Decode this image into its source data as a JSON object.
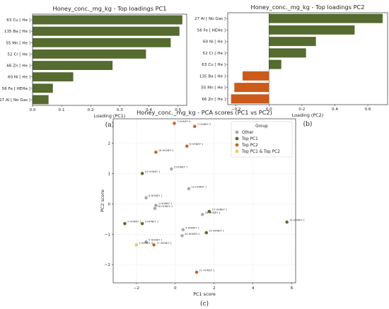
{
  "chart_data": [
    {
      "type": "bar",
      "orientation": "horizontal",
      "title": "Honey_conc._mg_kg - Top loadings PC1",
      "xlabel": "Loading (PC1)",
      "panel_label": "(a)",
      "categories": [
        "63 Cu [ He ]",
        "135 Ba [ He ]",
        "55 Mn [ He ]",
        "52 Cr [ He ]",
        "66 Zn [ He ]",
        "60 Ni [ He ]",
        "56 Fe [ HEHe ]",
        "27 Al [ No Gas ]"
      ],
      "values": [
        0.515,
        0.505,
        0.475,
        0.39,
        0.275,
        0.14,
        0.07,
        0.055
      ],
      "xlim": [
        0,
        0.53
      ],
      "xticks": [
        0.0,
        0.1,
        0.2,
        0.3,
        0.4,
        0.5
      ],
      "xtick_labels": [
        "0.0",
        "0.1",
        "0.2",
        "0.3",
        "0.4",
        "0.5"
      ],
      "colors": {
        "positive": "#556b2f",
        "negative": "#cc5a1a"
      }
    },
    {
      "type": "bar",
      "orientation": "horizontal",
      "title": "Honey_conc._mg_kg - Top loadings PC2",
      "xlabel": "Loading (PC2)",
      "panel_label": "(b)",
      "categories": [
        "27 Al [ No Gas ]",
        "56 Fe [ HEHe ]",
        "60 Ni [ He ]",
        "52 Cr [ He ]",
        "63 Cu [ He ]",
        "135 Ba [ He ]",
        "55 Mn [ He ]",
        "66 Zn [ He ]"
      ],
      "values": [
        0.69,
        0.52,
        0.285,
        0.225,
        0.075,
        -0.16,
        -0.21,
        -0.23
      ],
      "xlim": [
        -0.25,
        0.72
      ],
      "xticks": [
        -0.2,
        0.0,
        0.2,
        0.4,
        0.6
      ],
      "xtick_labels": [
        "−0.2",
        "0.0",
        "0.2",
        "0.4",
        "0.6"
      ],
      "colors": {
        "positive": "#556b2f",
        "negative": "#cc5a1a"
      }
    },
    {
      "type": "scatter",
      "title": "Honey_conc._mg_kg - PCA scores (PC1 vs PC2)",
      "xlabel": "PC1 score",
      "ylabel": "PC2 score",
      "panel_label": "(c)",
      "xlim": [
        -3.2,
        6.2
      ],
      "ylim": [
        -2.6,
        2.8
      ],
      "xticks": [
        -2,
        0,
        2,
        4,
        6
      ],
      "xtick_labels": [
        "−2",
        "0",
        "2",
        "4",
        "6"
      ],
      "yticks": [
        -2,
        -1,
        0,
        1,
        2
      ],
      "ytick_labels": [
        "−2",
        "−1",
        "0",
        "1",
        "2"
      ],
      "legend": {
        "title": "Group",
        "position": "top-right",
        "entries": [
          {
            "label": "Other",
            "color": "#a9a9a9"
          },
          {
            "label": "Top PC1",
            "color": "#556b2f"
          },
          {
            "label": "Top PC2",
            "color": "#c8641e"
          },
          {
            "label": "Top PC1 & Top PC2",
            "color": "#f2c266"
          }
        ]
      },
      "points": [
        {
          "x": -0.05,
          "y": 2.65,
          "label": "7 HONEY 4",
          "group": 2
        },
        {
          "x": 1.0,
          "y": 2.55,
          "label": "7 HONEY 2",
          "group": 2
        },
        {
          "x": 0.6,
          "y": 1.9,
          "label": "6 HONEY 1",
          "group": 2
        },
        {
          "x": -1.0,
          "y": 1.7,
          "label": "16 HONEY 1",
          "group": 2
        },
        {
          "x": -0.2,
          "y": 1.15,
          "label": "5 HONEY 1",
          "group": 0
        },
        {
          "x": -1.7,
          "y": 1.0,
          "label": "10 HONEY 1",
          "group": 1
        },
        {
          "x": 0.7,
          "y": 0.5,
          "label": "12 HONEY 1",
          "group": 0
        },
        {
          "x": -1.5,
          "y": 0.2,
          "label": "8 HONEY 1",
          "group": 0
        },
        {
          "x": -1.0,
          "y": -0.05,
          "label": "1 HONEY 1",
          "group": 0
        },
        {
          "x": -1.05,
          "y": -0.15,
          "label": "18 HONEY 1",
          "group": 0
        },
        {
          "x": 1.75,
          "y": -0.25,
          "label": "15 HONEY 1",
          "group": 1
        },
        {
          "x": 1.4,
          "y": -0.35,
          "label": "16 HONEY 1",
          "group": 0
        },
        {
          "x": 5.75,
          "y": -0.6,
          "label": "14 HONEY 1",
          "group": 1
        },
        {
          "x": -2.6,
          "y": -0.65,
          "label": "2 HONEY 1",
          "group": 1
        },
        {
          "x": -1.7,
          "y": -0.65,
          "label": "3 HONEY 1",
          "group": 1
        },
        {
          "x": 0.4,
          "y": -0.85,
          "label": "4 HONEY 1",
          "group": 0
        },
        {
          "x": 1.6,
          "y": -0.95,
          "label": "19 HONEY 1",
          "group": 1
        },
        {
          "x": 0.35,
          "y": -1.05,
          "label": "20 HONEY 1",
          "group": 0
        },
        {
          "x": -1.5,
          "y": -1.25,
          "label": "9 HONEY 1",
          "group": 0
        },
        {
          "x": -2.0,
          "y": -1.35,
          "label": "3 HONEY 3",
          "group": 3
        },
        {
          "x": -1.1,
          "y": -1.35,
          "label": "17 HONEY 1",
          "group": 2
        },
        {
          "x": 1.1,
          "y": -2.25,
          "label": "21 HONEY 1",
          "group": 2
        }
      ]
    }
  ]
}
